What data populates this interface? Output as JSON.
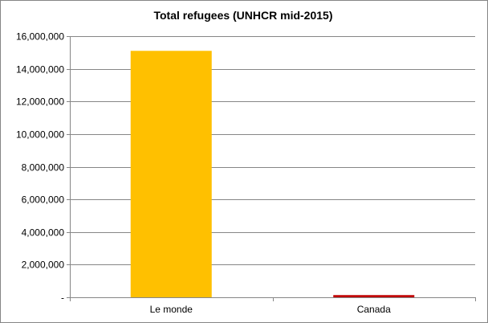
{
  "chart_data": {
    "type": "bar",
    "title": "Total refugees (UNHCR mid-2015)",
    "xlabel": "",
    "ylabel": "",
    "categories": [
      "Le monde",
      "Canada"
    ],
    "values": [
      15100000,
      135000
    ],
    "bar_colors": [
      "#FFC000",
      "#C00000"
    ],
    "ylim": [
      0,
      16000000
    ],
    "yticks": [
      0,
      2000000,
      4000000,
      6000000,
      8000000,
      10000000,
      12000000,
      14000000,
      16000000
    ],
    "ytick_labels": [
      "-",
      "2,000,000",
      "4,000,000",
      "6,000,000",
      "8,000,000",
      "10,000,000",
      "12,000,000",
      "14,000,000",
      "16,000,000"
    ],
    "grid": true,
    "legend": "none",
    "gridline_color": "#868686"
  }
}
